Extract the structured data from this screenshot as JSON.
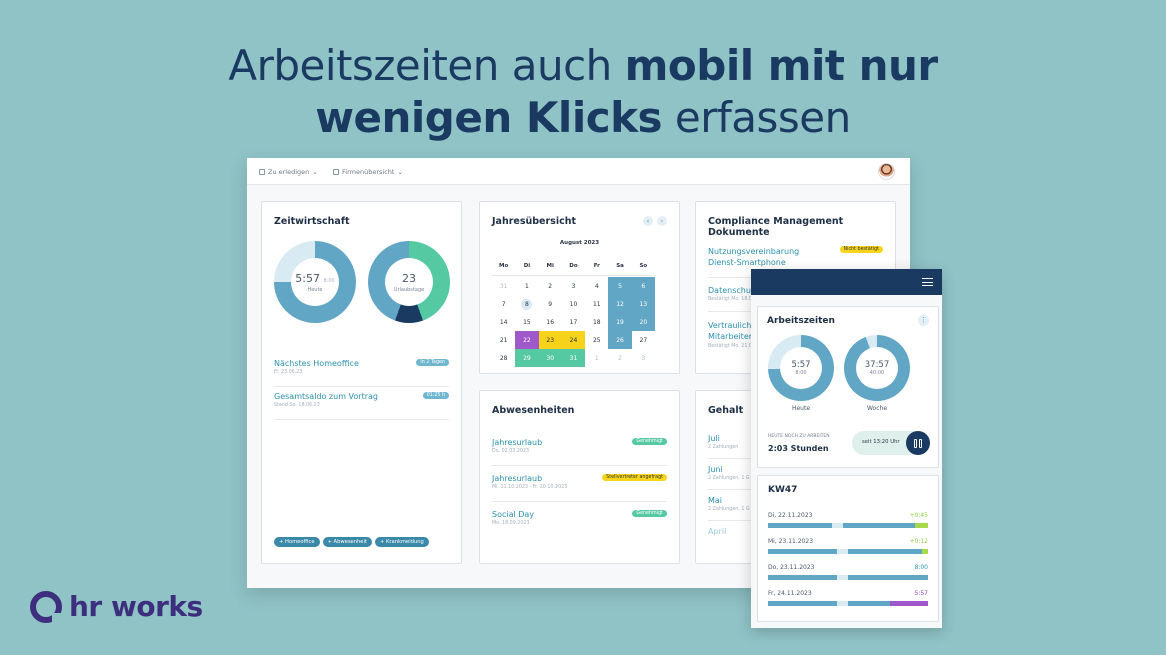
{
  "headline": {
    "line1_regular": "Arbeitszeiten auch",
    "line1_bold": "mobil mit nur",
    "line2_bold": "wenigen Klicks",
    "line2_regular": "erfassen"
  },
  "topbar": {
    "nav1": "Zu erledigen",
    "nav2": "Firmenübersicht",
    "chevron": "⌄"
  },
  "zeitwirtschaft": {
    "title": "Zeitwirtschaft",
    "donut1": {
      "value": "5:57",
      "suffix": "8:00",
      "label": "Heute"
    },
    "donut2": {
      "value": "23",
      "label": "Urlaubstage"
    },
    "rows": [
      {
        "title": "Nächstes Homeoffice",
        "sub": "Fr. 23.06.23",
        "badge": "In 2 Tagen"
      },
      {
        "title": "Gesamtsaldo zum Vortrag",
        "sub": "Stand So. 18.06.23",
        "badge": "01:25 h"
      }
    ],
    "chips": [
      "+ Homeoffice",
      "+ Abwesenheit",
      "+ Krankmeldung"
    ]
  },
  "jahres": {
    "title": "Jahresübersicht",
    "month": "August 2023",
    "prev": "‹",
    "next": "›",
    "weekdays": [
      "Mo",
      "Di",
      "Mi",
      "Do",
      "Fr",
      "Sa",
      "So"
    ],
    "weeks": [
      [
        {
          "d": "31",
          "s": "muted"
        },
        {
          "d": "1",
          "s": ""
        },
        {
          "d": "2",
          "s": ""
        },
        {
          "d": "3",
          "s": ""
        },
        {
          "d": "4",
          "s": ""
        },
        {
          "d": "5",
          "s": "blue"
        },
        {
          "d": "6",
          "s": "blue"
        }
      ],
      [
        {
          "d": "7",
          "s": ""
        },
        {
          "d": "8",
          "s": "today"
        },
        {
          "d": "9",
          "s": ""
        },
        {
          "d": "10",
          "s": ""
        },
        {
          "d": "11",
          "s": ""
        },
        {
          "d": "12",
          "s": "blue"
        },
        {
          "d": "13",
          "s": "blue"
        }
      ],
      [
        {
          "d": "14",
          "s": ""
        },
        {
          "d": "15",
          "s": ""
        },
        {
          "d": "16",
          "s": ""
        },
        {
          "d": "17",
          "s": ""
        },
        {
          "d": "18",
          "s": ""
        },
        {
          "d": "19",
          "s": "blue"
        },
        {
          "d": "20",
          "s": "blue"
        }
      ],
      [
        {
          "d": "21",
          "s": ""
        },
        {
          "d": "22",
          "s": "purple"
        },
        {
          "d": "23",
          "s": "yellow"
        },
        {
          "d": "24",
          "s": "yellow"
        },
        {
          "d": "25",
          "s": ""
        },
        {
          "d": "26",
          "s": "blue"
        },
        {
          "d": "27",
          "s": ""
        }
      ],
      [
        {
          "d": "28",
          "s": ""
        },
        {
          "d": "29",
          "s": "green"
        },
        {
          "d": "30",
          "s": "green"
        },
        {
          "d": "31",
          "s": "green"
        },
        {
          "d": "1",
          "s": "muted"
        },
        {
          "d": "2",
          "s": "muted"
        },
        {
          "d": "3",
          "s": "muted"
        }
      ]
    ]
  },
  "compliance": {
    "title": "Compliance Management Dokumente",
    "rows": [
      {
        "title": "Nutzungsvereinbarung Dienst-Smartphone",
        "sub": "",
        "badge": "Nicht bestätigt"
      },
      {
        "title": "Datenschut",
        "sub": "Bestätigt Mo. 18.06",
        "badge": ""
      },
      {
        "title": "Vertraulichk Mitarbeiter",
        "sub": "Bestätigt Mo. 21.0",
        "badge": ""
      }
    ]
  },
  "abwesenheiten": {
    "title": "Abwesenheiten",
    "rows": [
      {
        "title": "Jahresurlaub",
        "sub": "Do. 02.03.2023",
        "badge": "Genehmigt",
        "badge_color": "green"
      },
      {
        "title": "Jahresurlaub",
        "sub": "Mi. 11.10.2023 - Fr. 20.10.2023",
        "badge": "Stellvertreter angefragt",
        "badge_color": "yellow"
      },
      {
        "title": "Social Day",
        "sub": "Mo. 18.09.2023",
        "badge": "Genehmigt",
        "badge_color": "green"
      }
    ]
  },
  "gehalt": {
    "title": "Gehalt",
    "rows": [
      {
        "title": "Juli",
        "sub": "2 Zahlungen"
      },
      {
        "title": "Juni",
        "sub": "2 Zahlungen, 1 G"
      },
      {
        "title": "Mai",
        "sub": "2 Zahlungen, 1 G"
      },
      {
        "title": "April",
        "sub": ""
      }
    ]
  },
  "mobile": {
    "arbeitszeiten": {
      "title": "Arbeitszeiten",
      "more": "⋮",
      "donut1": {
        "value": "5:57",
        "sub": "8:00",
        "label": "Heute"
      },
      "donut2": {
        "value": "37:57",
        "sub": "40:00",
        "label": "Woche"
      },
      "remaining_label": "HEUTE NOCH ZU ARBEITEN",
      "remaining_value": "2:03 Stunden",
      "since": "seit 13:20 Uhr"
    },
    "kw": {
      "title": "KW47",
      "rows": [
        {
          "day": "Di, 22.11.2023",
          "value": "+0:45",
          "value_color": "#8ccf3c",
          "segs": [
            [
              0.4,
              "#62a6c6"
            ],
            [
              0.07,
              "#d8eaf2"
            ],
            [
              0.45,
              "#62a6c6"
            ],
            [
              0.08,
              "#a8d94a"
            ]
          ]
        },
        {
          "day": "Mi, 23.11.2023",
          "value": "+0:12",
          "value_color": "#8ccf3c",
          "segs": [
            [
              0.43,
              "#62a6c6"
            ],
            [
              0.07,
              "#d8eaf2"
            ],
            [
              0.46,
              "#62a6c6"
            ],
            [
              0.04,
              "#a8d94a"
            ]
          ]
        },
        {
          "day": "Do, 23.11.2023",
          "value": "8:00",
          "value_color": "#2a8fae",
          "segs": [
            [
              0.43,
              "#62a6c6"
            ],
            [
              0.07,
              "#d8eaf2"
            ],
            [
              0.5,
              "#62a6c6"
            ]
          ]
        },
        {
          "day": "Fr, 24.11.2023",
          "value": "5:57",
          "value_color": "#8e44c2",
          "segs": [
            [
              0.43,
              "#62a6c6"
            ],
            [
              0.07,
              "#d8eaf2"
            ],
            [
              0.26,
              "#62a6c6"
            ],
            [
              0.24,
              "#9e58c9"
            ]
          ]
        }
      ]
    }
  },
  "logo": {
    "text": "hr works"
  }
}
